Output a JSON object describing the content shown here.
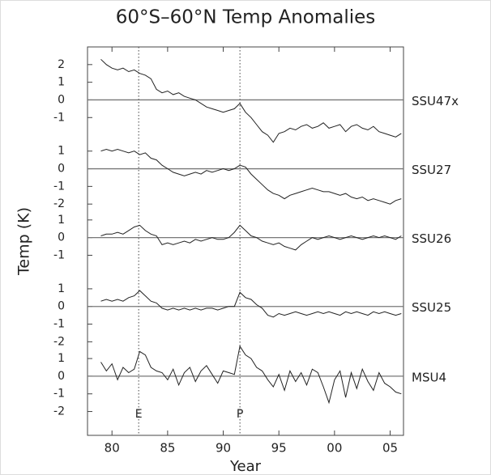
{
  "chart_data": {
    "type": "line",
    "title": "60°S–60°N Temp Anomalies",
    "xlabel": "Year",
    "ylabel": "Temp (K)",
    "xlim": [
      1977.8,
      2006.2
    ],
    "xticks": [
      {
        "value": 1980,
        "label": "80"
      },
      {
        "value": 1985,
        "label": "85"
      },
      {
        "value": 1990,
        "label": "90"
      },
      {
        "value": 1995,
        "label": "95"
      },
      {
        "value": 2000,
        "label": "00"
      },
      {
        "value": 2005,
        "label": "05"
      }
    ],
    "annotations": [
      {
        "text": "E",
        "x": 1982.4
      },
      {
        "text": "P",
        "x": 1991.5
      }
    ],
    "x": [
      1979,
      1979.5,
      1980,
      1980.5,
      1981,
      1981.5,
      1982,
      1982.5,
      1983,
      1983.5,
      1984,
      1984.5,
      1985,
      1985.5,
      1986,
      1986.5,
      1987,
      1987.5,
      1988,
      1988.5,
      1989,
      1989.5,
      1990,
      1990.5,
      1991,
      1991.5,
      1992,
      1992.5,
      1993,
      1993.5,
      1994,
      1994.5,
      1995,
      1995.5,
      1996,
      1996.5,
      1997,
      1997.5,
      1998,
      1998.5,
      1999,
      1999.5,
      2000,
      2000.5,
      2001,
      2001.5,
      2002,
      2002.5,
      2003,
      2003.5,
      2004,
      2004.5,
      2005,
      2005.5,
      2006
    ],
    "series": [
      {
        "name": "SSU47x",
        "color": "#222222",
        "ylim": [
          -19.0,
          3.0
        ],
        "yticks": [
          2,
          1,
          0,
          -1
        ],
        "values": [
          2.3,
          2.0,
          1.8,
          1.7,
          1.8,
          1.6,
          1.7,
          1.5,
          1.4,
          1.2,
          0.6,
          0.4,
          0.5,
          0.3,
          0.4,
          0.2,
          0.1,
          0.0,
          -0.2,
          -0.4,
          -0.5,
          -0.6,
          -0.7,
          -0.6,
          -0.5,
          -0.2,
          -0.7,
          -1.0,
          -1.4,
          -1.8,
          -2.0,
          -2.4,
          -1.9,
          -1.8,
          -1.6,
          -1.7,
          -1.5,
          -1.4,
          -1.6,
          -1.5,
          -1.3,
          -1.6,
          -1.5,
          -1.4,
          -1.8,
          -1.5,
          -1.4,
          -1.6,
          -1.7,
          -1.5,
          -1.8,
          -1.9,
          -2.0,
          -2.1,
          -1.9
        ]
      },
      {
        "name": "SSU27",
        "color": "#222222",
        "ylim": [
          -15.1,
          6.9
        ],
        "yticks": [
          1,
          0,
          -1,
          -2
        ],
        "values": [
          1.0,
          1.1,
          1.0,
          1.1,
          1.0,
          0.9,
          1.0,
          0.8,
          0.9,
          0.6,
          0.5,
          0.2,
          0.0,
          -0.2,
          -0.3,
          -0.4,
          -0.3,
          -0.2,
          -0.3,
          -0.1,
          -0.2,
          -0.1,
          0.0,
          -0.1,
          0.0,
          0.2,
          0.1,
          -0.3,
          -0.6,
          -0.9,
          -1.2,
          -1.4,
          -1.5,
          -1.7,
          -1.5,
          -1.4,
          -1.3,
          -1.2,
          -1.1,
          -1.2,
          -1.3,
          -1.3,
          -1.4,
          -1.5,
          -1.4,
          -1.6,
          -1.7,
          -1.6,
          -1.8,
          -1.7,
          -1.8,
          -1.9,
          -2.0,
          -1.8,
          -1.7
        ]
      },
      {
        "name": "SSU26",
        "color": "#222222",
        "ylim": [
          -11.2,
          10.8
        ],
        "yticks": [
          1,
          0,
          -1
        ],
        "values": [
          0.1,
          0.2,
          0.2,
          0.3,
          0.2,
          0.4,
          0.6,
          0.7,
          0.4,
          0.2,
          0.1,
          -0.4,
          -0.3,
          -0.4,
          -0.3,
          -0.2,
          -0.3,
          -0.1,
          -0.2,
          -0.1,
          0.0,
          -0.1,
          -0.1,
          0.0,
          0.3,
          0.7,
          0.4,
          0.1,
          0.0,
          -0.2,
          -0.3,
          -0.4,
          -0.3,
          -0.5,
          -0.6,
          -0.7,
          -0.4,
          -0.2,
          0.0,
          -0.1,
          0.0,
          0.1,
          0.0,
          -0.1,
          0.0,
          0.1,
          0.0,
          -0.1,
          0.0,
          0.1,
          0.0,
          0.1,
          0.0,
          -0.1,
          0.1
        ]
      },
      {
        "name": "SSU25",
        "color": "#222222",
        "ylim": [
          -7.3,
          14.7
        ],
        "yticks": [
          1,
          0,
          -1,
          -2
        ],
        "values": [
          0.3,
          0.4,
          0.3,
          0.4,
          0.3,
          0.5,
          0.6,
          0.9,
          0.6,
          0.3,
          0.2,
          -0.1,
          -0.2,
          -0.1,
          -0.2,
          -0.1,
          -0.2,
          -0.1,
          -0.2,
          -0.1,
          -0.1,
          -0.2,
          -0.1,
          0.0,
          0.0,
          0.8,
          0.5,
          0.4,
          0.1,
          -0.1,
          -0.5,
          -0.6,
          -0.4,
          -0.5,
          -0.4,
          -0.3,
          -0.4,
          -0.5,
          -0.4,
          -0.3,
          -0.4,
          -0.3,
          -0.4,
          -0.5,
          -0.3,
          -0.4,
          -0.3,
          -0.4,
          -0.5,
          -0.3,
          -0.4,
          -0.3,
          -0.4,
          -0.5,
          -0.4
        ]
      },
      {
        "name": "MSU4",
        "color": "#222222",
        "ylim": [
          -3.35,
          18.65
        ],
        "yticks": [
          1,
          0,
          -1,
          -2
        ],
        "values": [
          0.8,
          0.3,
          0.7,
          -0.2,
          0.5,
          0.2,
          0.4,
          1.4,
          1.2,
          0.5,
          0.3,
          0.2,
          -0.2,
          0.4,
          -0.5,
          0.2,
          0.5,
          -0.3,
          0.3,
          0.6,
          0.1,
          -0.4,
          0.3,
          0.2,
          0.1,
          1.7,
          1.2,
          1.0,
          0.5,
          0.3,
          -0.2,
          -0.6,
          0.1,
          -0.8,
          0.3,
          -0.3,
          0.2,
          -0.5,
          0.4,
          0.2,
          -0.6,
          -1.5,
          -0.2,
          0.3,
          -1.2,
          0.2,
          -0.7,
          0.4,
          -0.3,
          -0.8,
          0.2,
          -0.4,
          -0.6,
          -0.9,
          -1.0
        ]
      }
    ]
  }
}
